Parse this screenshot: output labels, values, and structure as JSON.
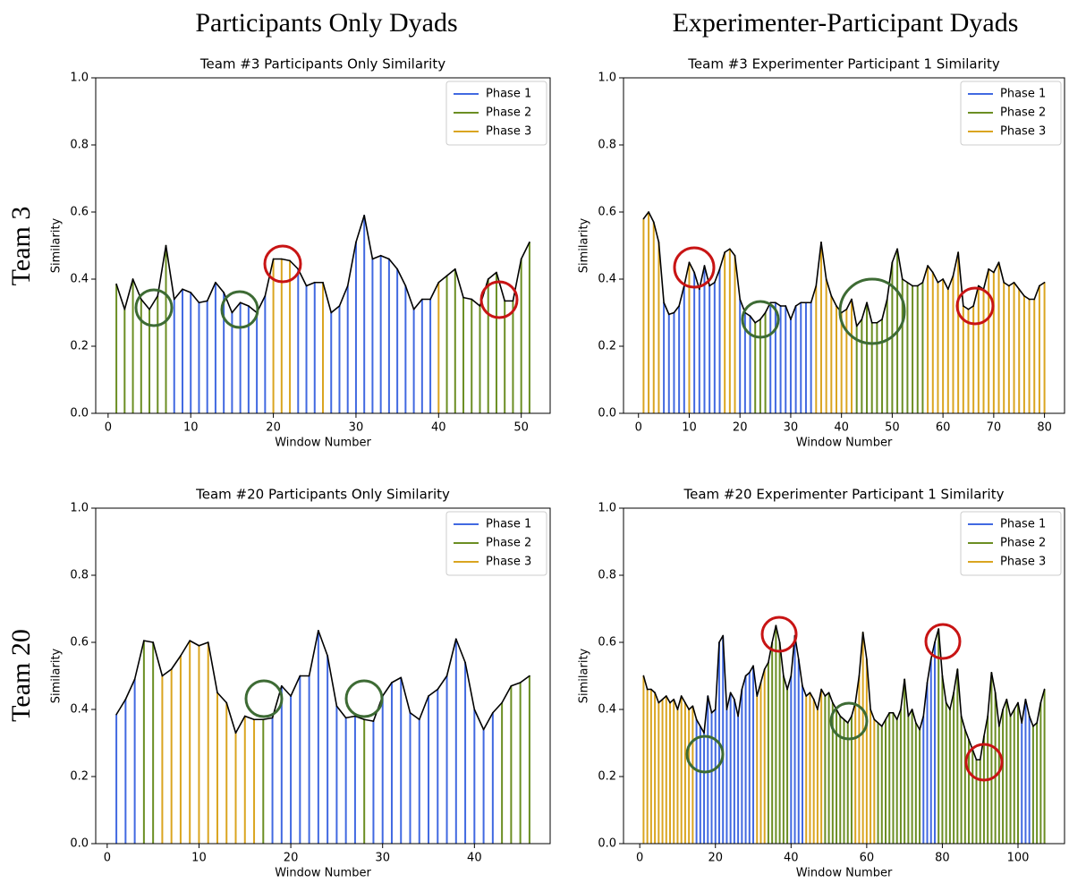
{
  "column_titles": [
    "Participants Only Dyads",
    "Experimenter-Participant Dyads"
  ],
  "row_titles": [
    "Team 3",
    "Team 20"
  ],
  "chart_data": [
    {
      "type": "stem",
      "title": "Team #3 Participants Only Similarity",
      "x_label": "Window Number",
      "y_label": "Similarity",
      "xlim": [
        -1.5,
        53.5
      ],
      "xticks": [
        0,
        10,
        20,
        30,
        40,
        50
      ],
      "ylim": [
        0,
        1
      ],
      "yticks": [
        {
          "value": 0,
          "label": "0.0"
        },
        0.2,
        0.4,
        0.6,
        0.8,
        {
          "value": 1,
          "label": "1.0"
        }
      ],
      "legend": "upper right",
      "line_color": "#000000",
      "series": [
        {
          "name": "Phase 1",
          "color": "#4169e1",
          "x": [
            8,
            9,
            10,
            11,
            12,
            13,
            14,
            15,
            16,
            17,
            18,
            19,
            23,
            24,
            25,
            27,
            28,
            29,
            30,
            31,
            32,
            33,
            34,
            35,
            36,
            37,
            38,
            39
          ],
          "values": [
            0.34,
            0.37,
            0.36,
            0.33,
            0.335,
            0.39,
            0.36,
            0.3,
            0.33,
            0.32,
            0.3,
            0.35,
            0.43,
            0.38,
            0.39,
            0.3,
            0.32,
            0.38,
            0.51,
            0.59,
            0.46,
            0.47,
            0.46,
            0.43,
            0.38,
            0.31,
            0.34,
            0.34
          ]
        },
        {
          "name": "Phase 2",
          "color": "#6b8e23",
          "x": [
            1,
            2,
            3,
            4,
            5,
            6,
            7,
            41,
            42,
            43,
            44,
            45,
            46,
            47,
            48,
            49,
            50,
            51
          ],
          "values": [
            0.385,
            0.31,
            0.4,
            0.34,
            0.31,
            0.35,
            0.5,
            0.41,
            0.43,
            0.345,
            0.34,
            0.32,
            0.4,
            0.42,
            0.335,
            0.335,
            0.46,
            0.51
          ]
        },
        {
          "name": "Phase 3",
          "color": "#daa520",
          "x": [
            20,
            21,
            22,
            26,
            40
          ],
          "values": [
            0.46,
            0.46,
            0.455,
            0.39,
            0.39
          ]
        }
      ]
    },
    {
      "type": "stem",
      "title": "Team #3 Experimenter Participant 1 Similarity",
      "x_label": "Window Number",
      "y_label": "Similarity",
      "xlim": [
        -2.95,
        83.95
      ],
      "xticks": [
        0,
        10,
        20,
        30,
        40,
        50,
        60,
        70,
        80
      ],
      "ylim": [
        0,
        1
      ],
      "yticks": [
        {
          "value": 0,
          "label": "0.0"
        },
        0.2,
        0.4,
        0.6,
        0.8,
        {
          "value": 1,
          "label": "1.0"
        }
      ],
      "legend": "upper right",
      "line_color": "#000000",
      "series": [
        {
          "name": "Phase 1",
          "color": "#4169e1",
          "x": [
            5,
            6,
            7,
            8,
            9,
            11,
            12,
            13,
            14,
            15,
            16,
            20,
            21,
            22,
            26,
            27,
            28,
            29,
            30,
            31,
            32,
            33,
            34
          ],
          "values": [
            0.33,
            0.295,
            0.3,
            0.32,
            0.38,
            0.42,
            0.37,
            0.44,
            0.38,
            0.39,
            0.43,
            0.34,
            0.3,
            0.29,
            0.33,
            0.33,
            0.32,
            0.32,
            0.28,
            0.32,
            0.33,
            0.33,
            0.33
          ]
        },
        {
          "name": "Phase 2",
          "color": "#6b8e23",
          "x": [
            23,
            24,
            25,
            43,
            44,
            45,
            46,
            47,
            48,
            49,
            50,
            51,
            52,
            53,
            54,
            55,
            56
          ],
          "values": [
            0.27,
            0.28,
            0.3,
            0.26,
            0.28,
            0.33,
            0.27,
            0.27,
            0.28,
            0.34,
            0.45,
            0.49,
            0.4,
            0.39,
            0.38,
            0.38,
            0.39
          ]
        },
        {
          "name": "Phase 3",
          "color": "#daa520",
          "x": [
            1,
            2,
            3,
            4,
            10,
            17,
            18,
            19,
            35,
            36,
            37,
            38,
            39,
            40,
            41,
            42,
            57,
            58,
            59,
            60,
            61,
            62,
            63,
            64,
            65,
            66,
            67,
            68,
            69,
            70,
            71,
            72,
            73,
            74,
            75,
            76,
            77,
            78,
            79,
            80
          ],
          "values": [
            0.58,
            0.6,
            0.57,
            0.51,
            0.45,
            0.48,
            0.49,
            0.47,
            0.38,
            0.51,
            0.4,
            0.35,
            0.32,
            0.3,
            0.31,
            0.34,
            0.44,
            0.42,
            0.39,
            0.4,
            0.37,
            0.41,
            0.48,
            0.32,
            0.31,
            0.32,
            0.38,
            0.37,
            0.43,
            0.42,
            0.45,
            0.39,
            0.38,
            0.39,
            0.37,
            0.35,
            0.34,
            0.34,
            0.38,
            0.39
          ]
        }
      ]
    },
    {
      "type": "stem",
      "title": "Team #20 Participants Only Similarity",
      "x_label": "Window Number",
      "y_label": "Similarity",
      "xlim": [
        -1.25,
        48.25
      ],
      "xticks": [
        0,
        10,
        20,
        30,
        40
      ],
      "ylim": [
        0,
        1
      ],
      "yticks": [
        {
          "value": 0,
          "label": "0.0"
        },
        0.2,
        0.4,
        0.6,
        0.8,
        {
          "value": 1,
          "label": "1.0"
        }
      ],
      "legend": "upper right",
      "line_color": "#000000",
      "series": [
        {
          "name": "Phase 1",
          "color": "#4169e1",
          "x": [
            1,
            2,
            3,
            18,
            19,
            20,
            21,
            22,
            23,
            24,
            25,
            26,
            27,
            29,
            30,
            31,
            32,
            33,
            34,
            35,
            36,
            37,
            38,
            39,
            40,
            41,
            42
          ],
          "values": [
            0.385,
            0.43,
            0.49,
            0.375,
            0.47,
            0.44,
            0.5,
            0.5,
            0.635,
            0.56,
            0.41,
            0.375,
            0.38,
            0.365,
            0.44,
            0.48,
            0.495,
            0.39,
            0.37,
            0.44,
            0.46,
            0.5,
            0.61,
            0.54,
            0.4,
            0.34,
            0.39
          ]
        },
        {
          "name": "Phase 2",
          "color": "#6b8e23",
          "x": [
            4,
            5,
            17,
            28,
            43,
            44,
            45,
            46
          ],
          "values": [
            0.605,
            0.6,
            0.37,
            0.37,
            0.42,
            0.47,
            0.48,
            0.5
          ]
        },
        {
          "name": "Phase 3",
          "color": "#daa520",
          "x": [
            6,
            7,
            8,
            9,
            10,
            11,
            12,
            13,
            14,
            15,
            16
          ],
          "values": [
            0.5,
            0.52,
            0.56,
            0.605,
            0.59,
            0.6,
            0.45,
            0.42,
            0.33,
            0.38,
            0.37
          ]
        }
      ]
    },
    {
      "type": "stem",
      "title": "Team #20 Experimenter Participant 1 Similarity",
      "x_label": "Window Number",
      "y_label": "Similarity",
      "xlim": [
        -4.3,
        112.3
      ],
      "xticks": [
        0,
        20,
        40,
        60,
        80,
        100
      ],
      "ylim": [
        0,
        1
      ],
      "yticks": [
        {
          "value": 0,
          "label": "0.0"
        },
        0.2,
        0.4,
        0.6,
        0.8,
        {
          "value": 1,
          "label": "1.0"
        }
      ],
      "legend": "upper right",
      "line_color": "#000000",
      "series": [
        {
          "name": "Phase 1",
          "color": "#4169e1",
          "x": [
            15,
            16,
            17,
            18,
            19,
            20,
            21,
            22,
            23,
            24,
            25,
            26,
            27,
            28,
            29,
            30,
            40,
            41,
            42,
            43,
            75,
            76,
            77,
            78,
            101,
            102,
            103
          ],
          "values": [
            0.37,
            0.35,
            0.33,
            0.44,
            0.39,
            0.4,
            0.6,
            0.62,
            0.4,
            0.45,
            0.43,
            0.38,
            0.46,
            0.5,
            0.51,
            0.53,
            0.5,
            0.62,
            0.55,
            0.47,
            0.38,
            0.48,
            0.55,
            0.6,
            0.36,
            0.43,
            0.38
          ]
        },
        {
          "name": "Phase 2",
          "color": "#6b8e23",
          "x": [
            34,
            35,
            36,
            37,
            38,
            39,
            49,
            50,
            51,
            52,
            53,
            54,
            55,
            56,
            63,
            64,
            65,
            66,
            67,
            68,
            69,
            70,
            71,
            72,
            73,
            74,
            79,
            80,
            81,
            82,
            83,
            84,
            85,
            86,
            87,
            88,
            89,
            90,
            91,
            92,
            93,
            94,
            95,
            96,
            97,
            98,
            99,
            100,
            104,
            105,
            106,
            107
          ],
          "values": [
            0.54,
            0.6,
            0.65,
            0.6,
            0.5,
            0.46,
            0.44,
            0.45,
            0.42,
            0.4,
            0.38,
            0.37,
            0.36,
            0.38,
            0.36,
            0.35,
            0.37,
            0.39,
            0.39,
            0.37,
            0.4,
            0.49,
            0.38,
            0.4,
            0.36,
            0.34,
            0.64,
            0.5,
            0.42,
            0.4,
            0.45,
            0.52,
            0.38,
            0.34,
            0.31,
            0.28,
            0.25,
            0.25,
            0.32,
            0.38,
            0.51,
            0.45,
            0.35,
            0.4,
            0.43,
            0.38,
            0.4,
            0.42,
            0.35,
            0.36,
            0.42,
            0.46
          ]
        },
        {
          "name": "Phase 3",
          "color": "#daa520",
          "x": [
            1,
            2,
            3,
            4,
            5,
            6,
            7,
            8,
            9,
            10,
            11,
            12,
            13,
            14,
            31,
            32,
            33,
            44,
            45,
            46,
            47,
            48,
            57,
            58,
            59,
            60,
            61,
            62
          ],
          "values": [
            0.5,
            0.46,
            0.46,
            0.45,
            0.42,
            0.43,
            0.44,
            0.42,
            0.43,
            0.4,
            0.44,
            0.42,
            0.4,
            0.41,
            0.44,
            0.48,
            0.52,
            0.44,
            0.45,
            0.43,
            0.4,
            0.46,
            0.42,
            0.5,
            0.63,
            0.55,
            0.4,
            0.37
          ]
        }
      ]
    }
  ]
}
